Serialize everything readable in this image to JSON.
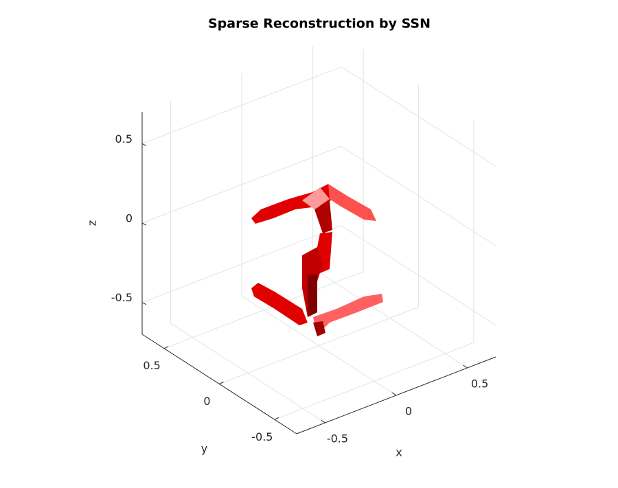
{
  "chart_data": {
    "type": "surface3d",
    "title": "Sparse Reconstruction by SSN",
    "x_label": "x",
    "y_label": "y",
    "z_label": "z",
    "xlim": [
      -0.7,
      0.7
    ],
    "ylim": [
      -0.7,
      0.7
    ],
    "zlim": [
      -0.7,
      0.7
    ],
    "xticks": [
      -0.5,
      0,
      0.5
    ],
    "yticks": [
      -0.5,
      0,
      0.5
    ],
    "zticks": [
      -0.5,
      0,
      0.5
    ],
    "grid": true,
    "color": "#ff0000"
  }
}
